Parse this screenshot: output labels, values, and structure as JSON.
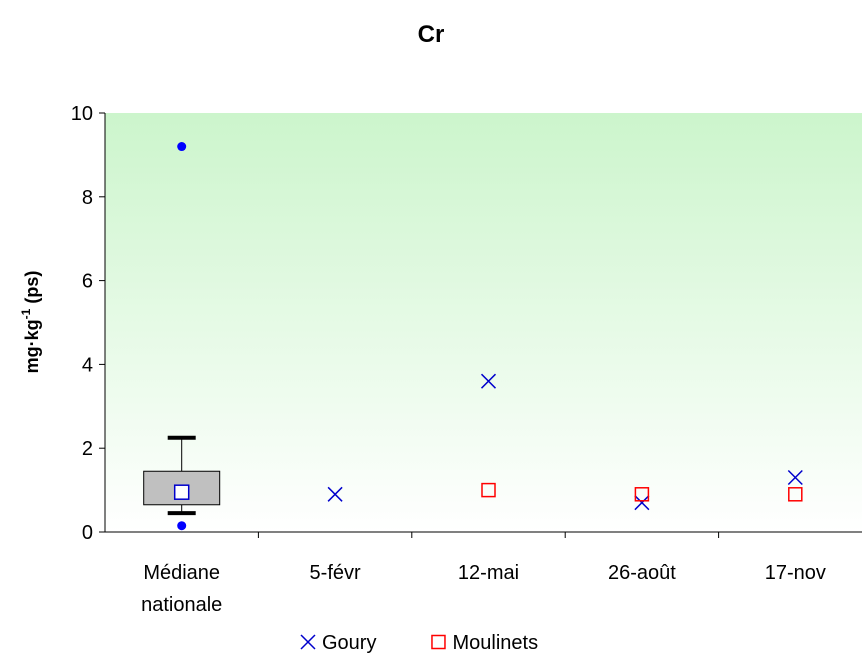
{
  "chart_data": {
    "type": "scatter",
    "title": "Cr",
    "y_label": {
      "text": "mg·kg",
      "sup": "-1",
      "suffix": " (ps)"
    },
    "categories": [
      "Médiane nationale",
      "5-févr",
      "12-mai",
      "26-août",
      "17-nov"
    ],
    "series": [
      {
        "name": "Goury",
        "color": "#0000cc",
        "marker": "x",
        "values": [
          null,
          0.9,
          3.6,
          0.7,
          1.3
        ]
      },
      {
        "name": "Moulinets",
        "color": "#ff0000",
        "marker": "square",
        "values": [
          null,
          null,
          1.0,
          0.9,
          0.9
        ]
      }
    ],
    "box": {
      "category": 0,
      "color": "#c0c0c0",
      "median_color": "#0000cc",
      "outlier_color": "#0000ff",
      "whisker_low": 0.45,
      "q1": 0.65,
      "median": 0.95,
      "q3": 1.45,
      "whisker_high": 2.25,
      "outliers": [
        0.15,
        9.2
      ]
    },
    "ylim": [
      0,
      10
    ],
    "yticks": [
      0,
      2,
      4,
      6,
      8,
      10
    ],
    "legend": "bottom"
  }
}
